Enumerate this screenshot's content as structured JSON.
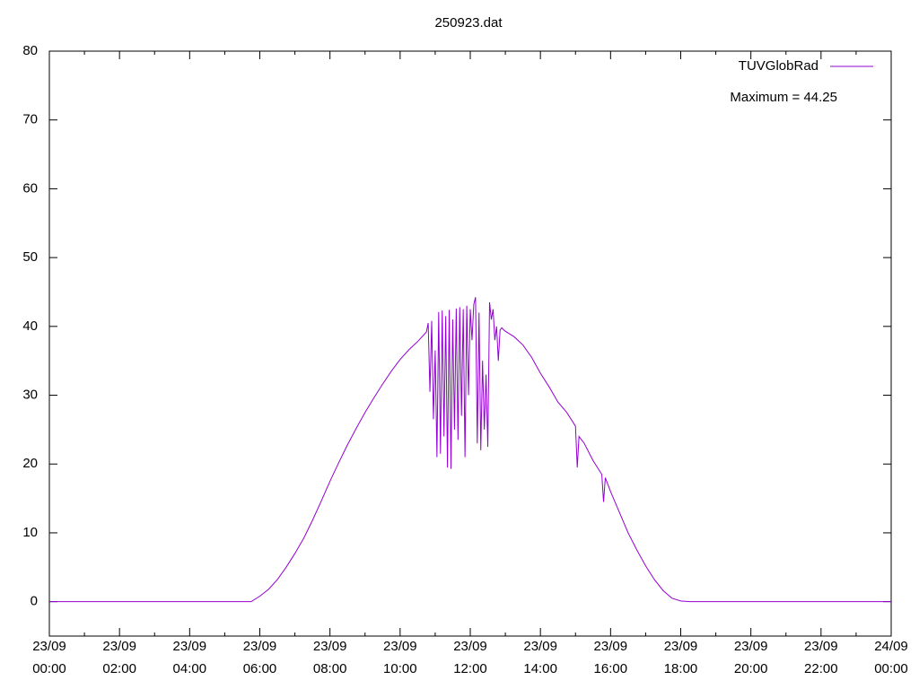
{
  "chart_data": {
    "type": "line",
    "title": "250923.dat",
    "annotation": "Maximum = 44.25",
    "x": [
      0,
      1,
      2,
      3,
      4,
      5,
      5.5,
      5.75,
      6,
      6.25,
      6.5,
      6.75,
      7,
      7.25,
      7.5,
      7.75,
      8,
      8.25,
      8.5,
      8.75,
      9,
      9.25,
      9.5,
      9.75,
      10,
      10.25,
      10.5,
      10.75,
      10.8,
      10.85,
      10.9,
      10.95,
      11.0,
      11.05,
      11.1,
      11.15,
      11.2,
      11.25,
      11.3,
      11.35,
      11.4,
      11.45,
      11.5,
      11.55,
      11.6,
      11.65,
      11.7,
      11.75,
      11.8,
      11.85,
      11.9,
      11.95,
      12.0,
      12.05,
      12.1,
      12.15,
      12.2,
      12.25,
      12.3,
      12.35,
      12.4,
      12.45,
      12.5,
      12.55,
      12.6,
      12.65,
      12.7,
      12.75,
      12.8,
      12.85,
      12.9,
      12.95,
      13,
      13.25,
      13.5,
      13.75,
      14,
      14.25,
      14.5,
      14.75,
      15,
      15.05,
      15.1,
      15.25,
      15.5,
      15.75,
      15.8,
      15.85,
      16,
      16.25,
      16.5,
      16.75,
      17,
      17.25,
      17.5,
      17.75,
      18,
      18.25,
      19,
      20,
      21,
      22,
      23,
      24
    ],
    "series": [
      {
        "name": "TUVGlobRad",
        "color": "#9400d3",
        "values": [
          0,
          0,
          0,
          0,
          0,
          0,
          0,
          0,
          0.8,
          1.8,
          3.2,
          5,
          7,
          9.2,
          11.8,
          14.6,
          17.5,
          20.2,
          22.8,
          25.2,
          27.5,
          29.6,
          31.6,
          33.5,
          35.2,
          36.6,
          37.8,
          39.2,
          40.5,
          30.5,
          40.8,
          26.5,
          36.5,
          21,
          42.1,
          21.5,
          42.3,
          24,
          41.5,
          19.5,
          42.4,
          19.3,
          41,
          25,
          42.6,
          23.5,
          42.8,
          27,
          42.5,
          21,
          43,
          30,
          42.5,
          38,
          43.2,
          44.25,
          23,
          42,
          22,
          35,
          25,
          33,
          22.5,
          43.5,
          41,
          42.5,
          38,
          40,
          35,
          39.5,
          39.8,
          39.5,
          39.3,
          38.5,
          37.3,
          35.5,
          33.2,
          31.2,
          29,
          27.5,
          25.5,
          19.5,
          24,
          23,
          20.5,
          18.5,
          14.5,
          18,
          16,
          13,
          10,
          7.5,
          5.2,
          3.2,
          1.6,
          0.5,
          0.1,
          0,
          0,
          0,
          0,
          0,
          0,
          0
        ]
      }
    ],
    "xlim": [
      0,
      24
    ],
    "xticks": [
      {
        "value": 0,
        "label": "23/09\n00:00"
      },
      {
        "value": 2,
        "label": "23/09\n02:00"
      },
      {
        "value": 4,
        "label": "23/09\n04:00"
      },
      {
        "value": 6,
        "label": "23/09\n06:00"
      },
      {
        "value": 8,
        "label": "23/09\n08:00"
      },
      {
        "value": 10,
        "label": "23/09\n10:00"
      },
      {
        "value": 12,
        "label": "23/09\n12:00"
      },
      {
        "value": 14,
        "label": "23/09\n14:00"
      },
      {
        "value": 16,
        "label": "23/09\n16:00"
      },
      {
        "value": 18,
        "label": "23/09\n18:00"
      },
      {
        "value": 20,
        "label": "23/09\n20:00"
      },
      {
        "value": 22,
        "label": "23/09\n22:00"
      },
      {
        "value": 24,
        "label": "24/09\n00:00"
      }
    ],
    "xminorticks": [
      1,
      3,
      5,
      7,
      9,
      11,
      13,
      15,
      17,
      19,
      21,
      23
    ],
    "ylim": [
      -5,
      80
    ],
    "yticks": [
      0,
      10,
      20,
      30,
      40,
      50,
      60,
      70,
      80
    ],
    "grid": false
  }
}
